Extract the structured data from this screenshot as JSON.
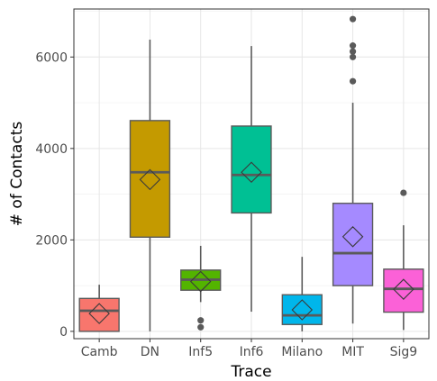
{
  "chart_data": {
    "type": "box",
    "xlabel": "Trace",
    "ylabel": "# of Contacts",
    "ylim": [
      -160,
      7050
    ],
    "yticks": [
      0,
      2000,
      4000,
      6000
    ],
    "yticklabels": [
      "0",
      "2000",
      "4000",
      "6000"
    ],
    "grid": true,
    "legend": "none",
    "categories": [
      "Camb",
      "DN",
      "Inf5",
      "Inf6",
      "Milano",
      "MIT",
      "Sig9"
    ],
    "boxes": [
      {
        "name": "Camb",
        "color": "#F8766D",
        "whisker_low": 0,
        "q1": 0,
        "median": 450,
        "q3": 720,
        "whisker_high": 1020,
        "mean": 390,
        "outliers": []
      },
      {
        "name": "DN",
        "color": "#C49A00",
        "whisker_low": 0,
        "q1": 2060,
        "median": 3480,
        "q3": 4610,
        "whisker_high": 6380,
        "mean": 3320,
        "outliers": []
      },
      {
        "name": "Inf5",
        "color": "#53B400",
        "whisker_low": 640,
        "q1": 900,
        "median": 1130,
        "q3": 1340,
        "whisker_high": 1870,
        "mean": 1090,
        "outliers": [
          240,
          90
        ]
      },
      {
        "name": "Inf6",
        "color": "#00C094",
        "whisker_low": 430,
        "q1": 2590,
        "median": 3420,
        "q3": 4490,
        "whisker_high": 6240,
        "mean": 3480,
        "outliers": []
      },
      {
        "name": "Milano",
        "color": "#00B6EB",
        "whisker_low": 0,
        "q1": 150,
        "median": 350,
        "q3": 800,
        "whisker_high": 1630,
        "mean": 470,
        "outliers": []
      },
      {
        "name": "MIT",
        "color": "#A58AFF",
        "whisker_low": 170,
        "q1": 1000,
        "median": 1710,
        "q3": 2800,
        "whisker_high": 5000,
        "mean": 2070,
        "outliers": [
          5470,
          6000,
          6120,
          6250,
          6830
        ]
      },
      {
        "name": "Sig9",
        "color": "#FB61D7",
        "whisker_low": 30,
        "q1": 420,
        "median": 930,
        "q3": 1360,
        "whisker_high": 2320,
        "mean": 920,
        "outliers": [
          3030
        ]
      }
    ]
  }
}
